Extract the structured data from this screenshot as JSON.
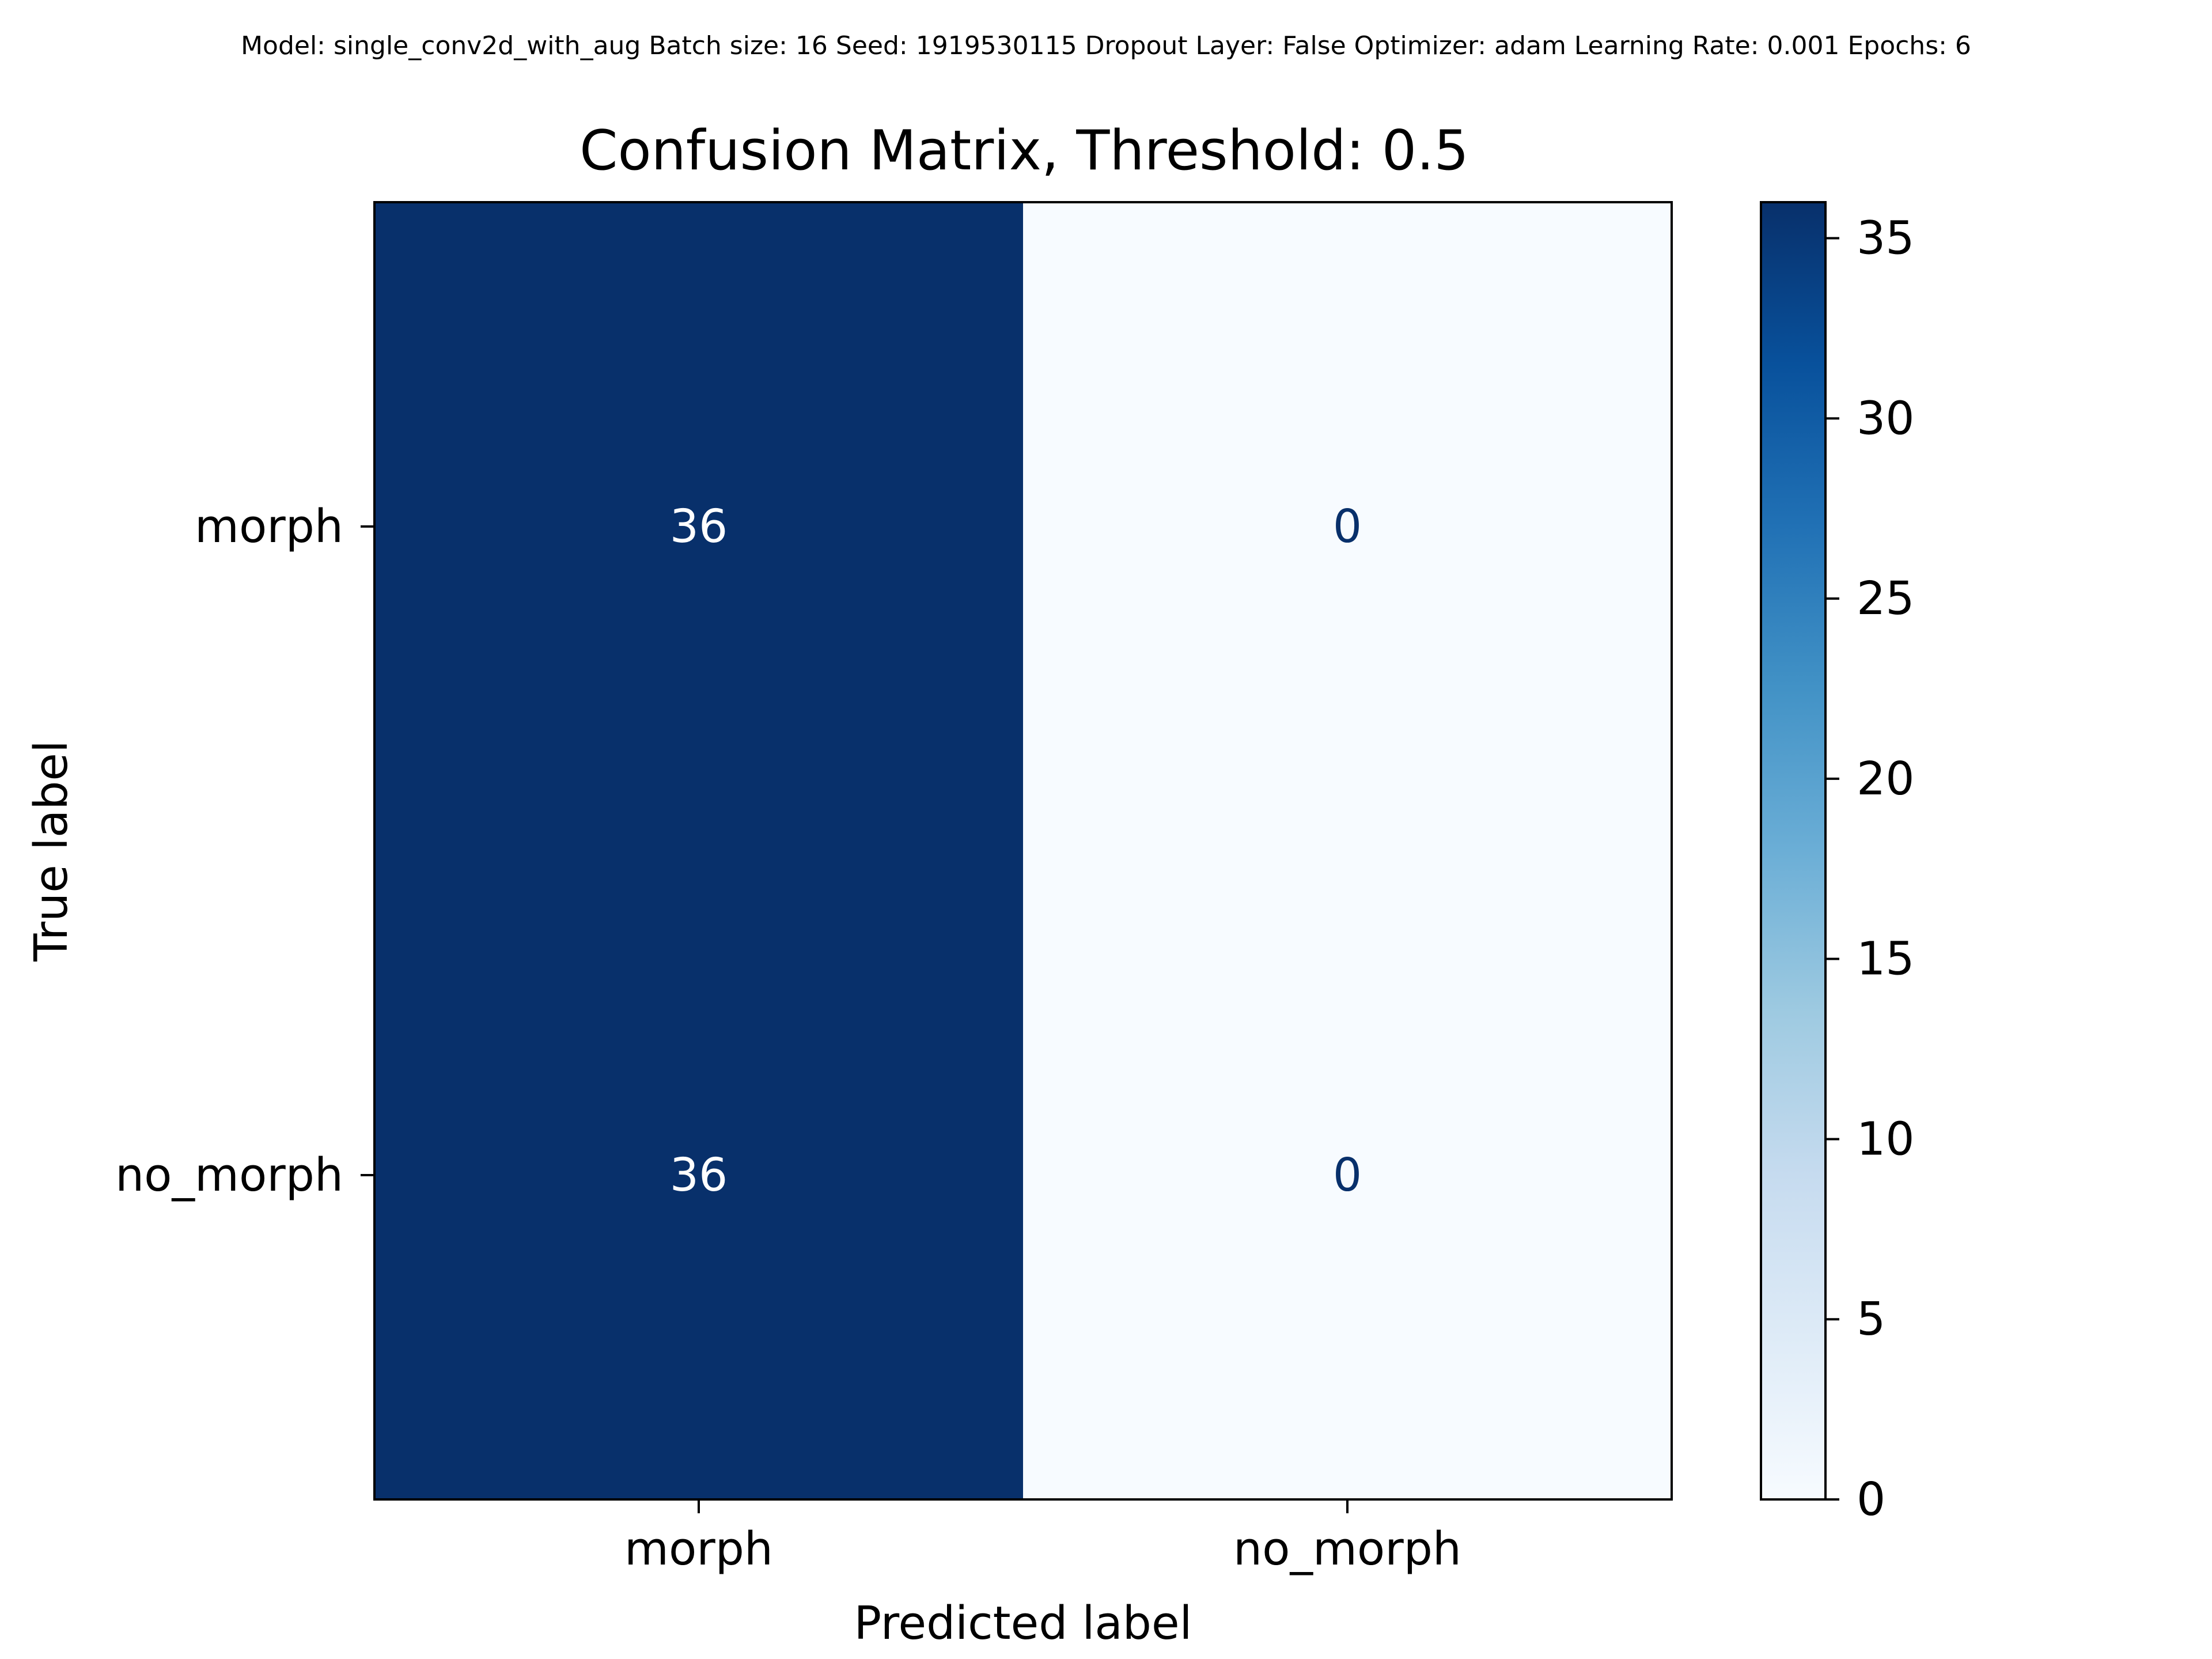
{
  "suptitle": "Model: single_conv2d_with_aug  Batch size: 16  Seed: 1919530115  Dropout Layer: False  Optimizer: adam  Learning Rate: 0.001  Epochs: 6",
  "chart_data": {
    "type": "heatmap",
    "title": "Confusion Matrix, Threshold: 0.5",
    "xlabel": "Predicted label",
    "ylabel": "True label",
    "x_categories": [
      "morph",
      "no_morph"
    ],
    "y_categories": [
      "morph",
      "no_morph"
    ],
    "values": [
      [
        36,
        0
      ],
      [
        36,
        0
      ]
    ],
    "colormap": "Blues",
    "colorbar": {
      "range": [
        0,
        36
      ],
      "ticks": [
        0,
        5,
        10,
        15,
        20,
        25,
        30,
        35
      ],
      "tick_labels": [
        "0",
        "5",
        "10",
        "15",
        "20",
        "25",
        "30",
        "35"
      ],
      "low_color": "#f7fbff",
      "high_color": "#08306b"
    },
    "grid": false,
    "text_color_dark_cell": "#ffffff",
    "text_color_light_cell": "#08306b"
  }
}
